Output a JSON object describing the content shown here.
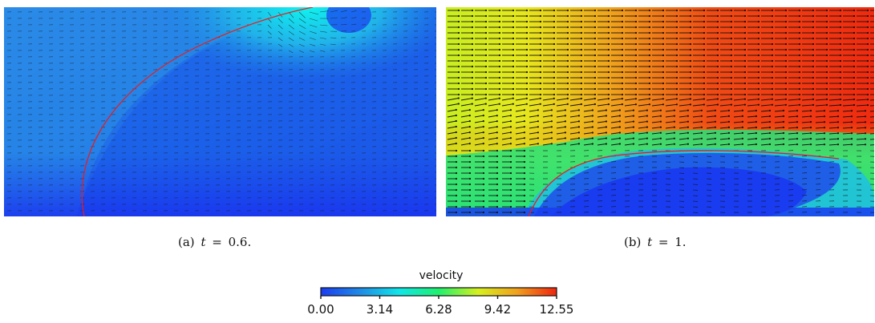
{
  "panels": [
    {
      "id": "a",
      "caption": {
        "label": "(a)",
        "var": "t",
        "eq": "=",
        "value": "0.6."
      },
      "palette": {
        "low": "#1a3cf0",
        "mid": "#1f8be6",
        "high": "#0ff2ee"
      },
      "interface_color": "#ee1b1b",
      "arrow_color": "#1c1c1c"
    },
    {
      "id": "b",
      "caption": {
        "label": "(b)",
        "var": "t",
        "eq": "=",
        "value": "1."
      },
      "palette": {
        "low": "#1a3cf0",
        "mid": "#23f06e",
        "high": "#f0240f"
      },
      "interface_color": "#ee1b1b",
      "arrow_color": "#111111"
    }
  ],
  "colorbar": {
    "title": "velocity",
    "ticks": [
      "0.00",
      "3.14",
      "6.28",
      "9.42",
      "12.55"
    ],
    "min": 0.0,
    "max": 12.55,
    "stops": [
      "#1a3cf0",
      "#1f8be6",
      "#10e6e8",
      "#1ef06e",
      "#d6f01e",
      "#f0a01e",
      "#f0240f"
    ]
  }
}
